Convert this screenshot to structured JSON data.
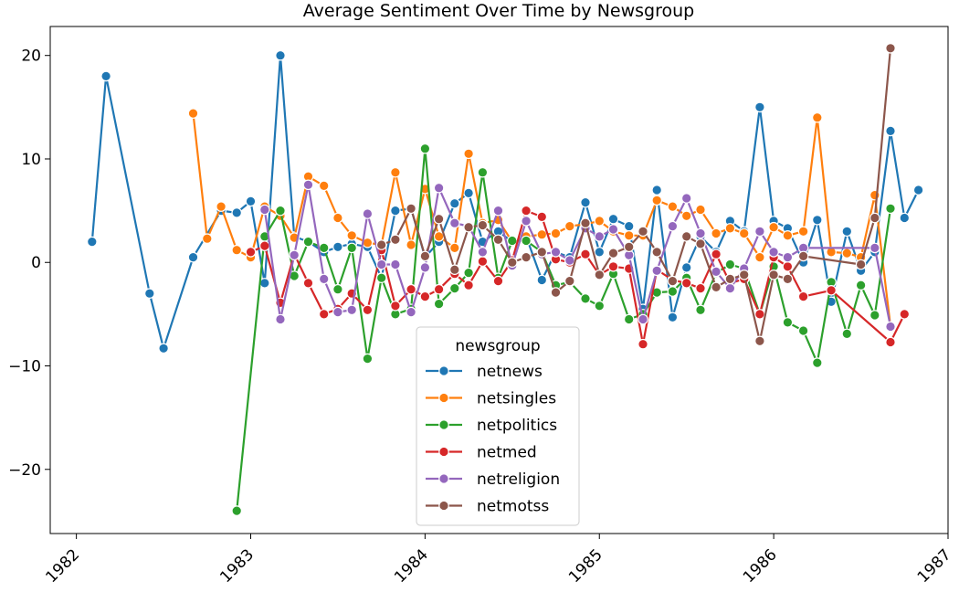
{
  "chart_data": {
    "type": "line",
    "title": "Average Sentiment Over Time by Newsgroup",
    "xlabel": "",
    "ylabel": "",
    "x_ticks": [
      "1982",
      "1983",
      "1984",
      "1985",
      "1986",
      "1987"
    ],
    "y_ticks": [
      -20,
      -10,
      0,
      10,
      20
    ],
    "xlim": [
      1981.85,
      1987.0
    ],
    "ylim": [
      -26.2,
      22.8
    ],
    "grid": false,
    "legend": {
      "title": "newsgroup",
      "placement": "lower-center"
    },
    "series": [
      {
        "name": "netnews",
        "color": "#1f77b4",
        "points": [
          [
            1982.09,
            2.0
          ],
          [
            1982.17,
            18.0
          ],
          [
            1982.42,
            -3.0
          ],
          [
            1982.5,
            -8.3
          ],
          [
            1982.67,
            0.5
          ],
          [
            1982.83,
            5.0
          ],
          [
            1982.92,
            4.8
          ],
          [
            1983.0,
            5.9
          ],
          [
            1983.08,
            -2.0
          ],
          [
            1983.17,
            20.0
          ],
          [
            1983.25,
            2.5
          ],
          [
            1983.33,
            2.0
          ],
          [
            1983.42,
            1.0
          ],
          [
            1983.5,
            1.5
          ],
          [
            1983.58,
            1.8
          ],
          [
            1983.67,
            1.5
          ],
          [
            1983.75,
            -1.5
          ],
          [
            1983.83,
            5.0
          ],
          [
            1983.92,
            5.2
          ],
          [
            1984.0,
            0.5
          ],
          [
            1984.08,
            2.0
          ],
          [
            1984.17,
            5.7
          ],
          [
            1984.25,
            6.7
          ],
          [
            1984.33,
            2.0
          ],
          [
            1984.42,
            3.0
          ],
          [
            1984.5,
            2.0
          ],
          [
            1984.58,
            2.5
          ],
          [
            1984.67,
            -1.7
          ],
          [
            1984.75,
            1.0
          ],
          [
            1984.83,
            0.5
          ],
          [
            1984.92,
            5.8
          ],
          [
            1985.0,
            1.0
          ],
          [
            1985.08,
            4.2
          ],
          [
            1985.17,
            3.5
          ],
          [
            1985.25,
            -4.5
          ],
          [
            1985.33,
            7.0
          ],
          [
            1985.42,
            -5.3
          ],
          [
            1985.5,
            -0.5
          ],
          [
            1985.58,
            2.5
          ],
          [
            1985.67,
            1.0
          ],
          [
            1985.75,
            4.0
          ],
          [
            1985.83,
            3.0
          ],
          [
            1985.92,
            15.0
          ],
          [
            1986.0,
            4.0
          ],
          [
            1986.08,
            3.3
          ],
          [
            1986.17,
            0.0
          ],
          [
            1986.25,
            4.1
          ],
          [
            1986.33,
            -3.8
          ],
          [
            1986.42,
            3.0
          ],
          [
            1986.5,
            -0.8
          ],
          [
            1986.58,
            1.0
          ],
          [
            1986.67,
            12.7
          ],
          [
            1986.75,
            4.3
          ],
          [
            1986.83,
            7.0
          ]
        ]
      },
      {
        "name": "netsingles",
        "color": "#ff7f0e",
        "points": [
          [
            1982.67,
            14.4
          ],
          [
            1982.75,
            2.3
          ],
          [
            1982.83,
            5.4
          ],
          [
            1982.92,
            1.2
          ],
          [
            1983.0,
            0.5
          ],
          [
            1983.08,
            5.4
          ],
          [
            1983.17,
            4.5
          ],
          [
            1983.25,
            2.4
          ],
          [
            1983.33,
            8.3
          ],
          [
            1983.42,
            7.4
          ],
          [
            1983.5,
            4.3
          ],
          [
            1983.58,
            2.6
          ],
          [
            1983.67,
            1.9
          ],
          [
            1983.75,
            1.7
          ],
          [
            1983.83,
            8.7
          ],
          [
            1983.92,
            1.7
          ],
          [
            1984.0,
            7.1
          ],
          [
            1984.08,
            2.5
          ],
          [
            1984.17,
            1.4
          ],
          [
            1984.25,
            10.5
          ],
          [
            1984.33,
            3.8
          ],
          [
            1984.42,
            4.1
          ],
          [
            1984.5,
            2.0
          ],
          [
            1984.58,
            2.5
          ],
          [
            1984.67,
            2.7
          ],
          [
            1984.75,
            2.8
          ],
          [
            1984.83,
            3.5
          ],
          [
            1984.92,
            3.7
          ],
          [
            1985.0,
            4.0
          ],
          [
            1985.08,
            3.0
          ],
          [
            1985.17,
            2.6
          ],
          [
            1985.25,
            2.6
          ],
          [
            1985.33,
            6.0
          ],
          [
            1985.42,
            5.4
          ],
          [
            1985.5,
            4.5
          ],
          [
            1985.58,
            5.1
          ],
          [
            1985.67,
            2.8
          ],
          [
            1985.75,
            3.3
          ],
          [
            1985.83,
            2.8
          ],
          [
            1985.92,
            0.5
          ],
          [
            1986.0,
            3.4
          ],
          [
            1986.08,
            2.6
          ],
          [
            1986.17,
            3.0
          ],
          [
            1986.25,
            14.0
          ],
          [
            1986.33,
            1.0
          ],
          [
            1986.42,
            0.9
          ],
          [
            1986.5,
            0.5
          ],
          [
            1986.58,
            6.5
          ],
          [
            1986.67,
            -6.2
          ]
        ]
      },
      {
        "name": "netpolitics",
        "color": "#2ca02c",
        "points": [
          [
            1982.92,
            -24.0
          ],
          [
            1983.08,
            2.5
          ],
          [
            1983.17,
            5.0
          ],
          [
            1983.25,
            -1.3
          ],
          [
            1983.33,
            2.0
          ],
          [
            1983.42,
            1.4
          ],
          [
            1983.5,
            -2.6
          ],
          [
            1983.58,
            1.4
          ],
          [
            1983.67,
            -9.3
          ],
          [
            1983.75,
            -1.5
          ],
          [
            1983.83,
            -5.0
          ],
          [
            1983.92,
            -4.5
          ],
          [
            1984.0,
            11.0
          ],
          [
            1984.08,
            -4.0
          ],
          [
            1984.17,
            -2.5
          ],
          [
            1984.25,
            -1.0
          ],
          [
            1984.33,
            8.7
          ],
          [
            1984.42,
            -1.5
          ],
          [
            1984.5,
            2.1
          ],
          [
            1984.58,
            2.1
          ],
          [
            1984.67,
            1.0
          ],
          [
            1984.75,
            -2.2
          ],
          [
            1984.83,
            -1.9
          ],
          [
            1984.92,
            -3.5
          ],
          [
            1985.0,
            -4.2
          ],
          [
            1985.08,
            -1.1
          ],
          [
            1985.17,
            -5.5
          ],
          [
            1985.25,
            -5.0
          ],
          [
            1985.33,
            -2.9
          ],
          [
            1985.42,
            -2.8
          ],
          [
            1985.5,
            -1.5
          ],
          [
            1985.58,
            -4.6
          ],
          [
            1985.67,
            -1.0
          ],
          [
            1985.75,
            -0.2
          ],
          [
            1985.83,
            -0.6
          ],
          [
            1985.92,
            -5.0
          ],
          [
            1986.0,
            -0.4
          ],
          [
            1986.08,
            -5.8
          ],
          [
            1986.17,
            -6.6
          ],
          [
            1986.25,
            -9.7
          ],
          [
            1986.33,
            -1.9
          ],
          [
            1986.42,
            -6.9
          ],
          [
            1986.5,
            -2.2
          ],
          [
            1986.58,
            -5.1
          ],
          [
            1986.67,
            5.2
          ]
        ]
      },
      {
        "name": "netmed",
        "color": "#d62728",
        "points": [
          [
            1983.0,
            1.0
          ],
          [
            1983.08,
            1.6
          ],
          [
            1983.17,
            -3.9
          ],
          [
            1983.25,
            0.8
          ],
          [
            1983.33,
            -2.0
          ],
          [
            1983.42,
            -5.0
          ],
          [
            1983.5,
            -4.5
          ],
          [
            1983.58,
            -3.0
          ],
          [
            1983.67,
            -4.6
          ],
          [
            1983.75,
            1.2
          ],
          [
            1983.83,
            -4.2
          ],
          [
            1983.92,
            -2.6
          ],
          [
            1984.0,
            -3.3
          ],
          [
            1984.08,
            -2.6
          ],
          [
            1984.17,
            -1.1
          ],
          [
            1984.25,
            -2.2
          ],
          [
            1984.33,
            0.1
          ],
          [
            1984.42,
            -1.8
          ],
          [
            1984.5,
            0.2
          ],
          [
            1984.58,
            5.0
          ],
          [
            1984.67,
            4.4
          ],
          [
            1984.75,
            0.3
          ],
          [
            1984.83,
            0.0
          ],
          [
            1984.92,
            0.8
          ],
          [
            1985.0,
            -1.2
          ],
          [
            1985.08,
            -0.4
          ],
          [
            1985.17,
            -0.6
          ],
          [
            1985.25,
            -7.9
          ],
          [
            1985.33,
            -0.7
          ],
          [
            1985.42,
            -1.7
          ],
          [
            1985.5,
            -2.0
          ],
          [
            1985.58,
            -2.5
          ],
          [
            1985.67,
            0.8
          ],
          [
            1985.75,
            -2.0
          ],
          [
            1985.83,
            -1.6
          ],
          [
            1985.92,
            -5.0
          ],
          [
            1986.0,
            0.5
          ],
          [
            1986.08,
            -0.4
          ],
          [
            1986.17,
            -3.3
          ],
          [
            1986.33,
            -2.7
          ],
          [
            1986.67,
            -7.7
          ],
          [
            1986.75,
            -5.0
          ]
        ]
      },
      {
        "name": "netreligion",
        "color": "#9467bd",
        "points": [
          [
            1983.08,
            5.1
          ],
          [
            1983.17,
            -5.5
          ],
          [
            1983.25,
            0.7
          ],
          [
            1983.33,
            7.5
          ],
          [
            1983.42,
            -1.6
          ],
          [
            1983.5,
            -4.8
          ],
          [
            1983.58,
            -4.6
          ],
          [
            1983.67,
            4.7
          ],
          [
            1983.75,
            -0.2
          ],
          [
            1983.83,
            -0.2
          ],
          [
            1983.92,
            -4.8
          ],
          [
            1984.0,
            -0.5
          ],
          [
            1984.08,
            7.2
          ],
          [
            1984.17,
            3.8
          ],
          [
            1984.25,
            3.5
          ],
          [
            1984.33,
            1.0
          ],
          [
            1984.42,
            5.0
          ],
          [
            1984.5,
            -0.3
          ],
          [
            1984.58,
            4.0
          ],
          [
            1984.67,
            0.8
          ],
          [
            1984.75,
            1.0
          ],
          [
            1984.83,
            0.2
          ],
          [
            1984.92,
            3.3
          ],
          [
            1985.0,
            2.5
          ],
          [
            1985.08,
            3.2
          ],
          [
            1985.17,
            0.7
          ],
          [
            1985.25,
            -5.5
          ],
          [
            1985.33,
            -0.8
          ],
          [
            1985.42,
            3.5
          ],
          [
            1985.5,
            6.2
          ],
          [
            1985.58,
            2.8
          ],
          [
            1985.67,
            -0.9
          ],
          [
            1985.75,
            -2.5
          ],
          [
            1985.83,
            -0.6
          ],
          [
            1985.92,
            3.0
          ],
          [
            1986.0,
            1.0
          ],
          [
            1986.08,
            0.5
          ],
          [
            1986.17,
            1.4
          ],
          [
            1986.58,
            1.4
          ],
          [
            1986.67,
            -6.2
          ]
        ]
      },
      {
        "name": "netmotss",
        "color": "#8c564b",
        "points": [
          [
            1983.75,
            1.7
          ],
          [
            1983.83,
            2.2
          ],
          [
            1983.92,
            5.2
          ],
          [
            1984.0,
            0.6
          ],
          [
            1984.08,
            4.2
          ],
          [
            1984.17,
            -0.7
          ],
          [
            1984.25,
            3.4
          ],
          [
            1984.33,
            3.6
          ],
          [
            1984.42,
            2.2
          ],
          [
            1984.5,
            0.0
          ],
          [
            1984.58,
            0.5
          ],
          [
            1984.67,
            1.0
          ],
          [
            1984.75,
            -2.9
          ],
          [
            1984.83,
            -1.8
          ],
          [
            1984.92,
            3.8
          ],
          [
            1985.0,
            -1.2
          ],
          [
            1985.08,
            0.9
          ],
          [
            1985.17,
            1.5
          ],
          [
            1985.25,
            3.0
          ],
          [
            1985.33,
            1.0
          ],
          [
            1985.42,
            -1.8
          ],
          [
            1985.5,
            2.5
          ],
          [
            1985.58,
            1.8
          ],
          [
            1985.67,
            -2.4
          ],
          [
            1985.75,
            -1.6
          ],
          [
            1985.83,
            -1.2
          ],
          [
            1985.92,
            -7.6
          ],
          [
            1986.0,
            -1.2
          ],
          [
            1986.08,
            -1.6
          ],
          [
            1986.17,
            0.6
          ],
          [
            1986.5,
            -0.2
          ],
          [
            1986.58,
            4.3
          ],
          [
            1986.67,
            20.7
          ]
        ]
      }
    ]
  }
}
